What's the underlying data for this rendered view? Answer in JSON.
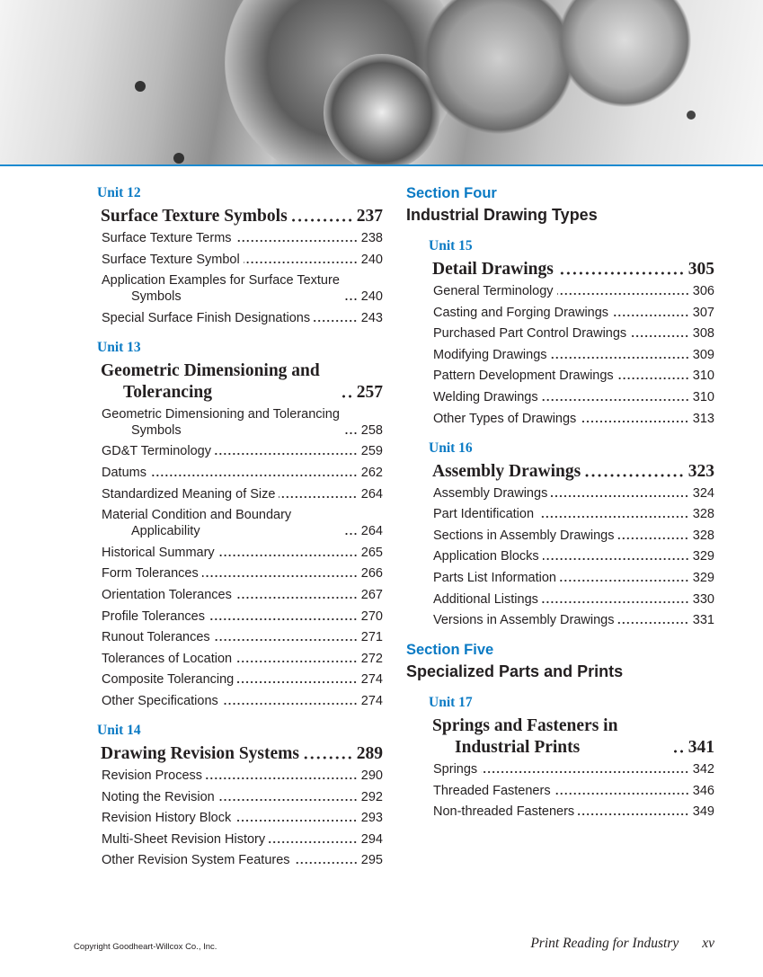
{
  "columns": {
    "left": [
      {
        "type": "unit",
        "label": "Unit 12",
        "title": "Surface Texture Symbols",
        "page": "237",
        "entries": [
          {
            "label": "Surface Texture Terms",
            "page": "238"
          },
          {
            "label": "Surface Texture Symbol",
            "page": "240"
          },
          {
            "label": "Application Examples for Surface Texture Symbols",
            "page": "240"
          },
          {
            "label": "Special Surface Finish Designations",
            "page": "243"
          }
        ]
      },
      {
        "type": "unit",
        "label": "Unit 13",
        "title": "Geometric Dimensioning and Tolerancing",
        "page": "257",
        "entries": [
          {
            "label": "Geometric Dimensioning and Tolerancing Symbols",
            "page": "258"
          },
          {
            "label": "GD&T Terminology",
            "page": "259"
          },
          {
            "label": "Datums",
            "page": "262"
          },
          {
            "label": "Standardized Meaning of Size",
            "page": "264"
          },
          {
            "label": "Material Condition and Boundary Applicability",
            "page": "264"
          },
          {
            "label": "Historical Summary",
            "page": "265"
          },
          {
            "label": "Form Tolerances",
            "page": "266"
          },
          {
            "label": "Orientation Tolerances",
            "page": "267"
          },
          {
            "label": "Profile Tolerances",
            "page": "270"
          },
          {
            "label": "Runout Tolerances",
            "page": "271"
          },
          {
            "label": "Tolerances of Location",
            "page": "272"
          },
          {
            "label": "Composite Tolerancing",
            "page": "274"
          },
          {
            "label": "Other Specifications",
            "page": "274"
          }
        ]
      },
      {
        "type": "unit",
        "label": "Unit 14",
        "title": "Drawing Revision Systems",
        "page": "289",
        "entries": [
          {
            "label": "Revision Process",
            "page": "290"
          },
          {
            "label": "Noting the Revision",
            "page": "292"
          },
          {
            "label": "Revision History Block",
            "page": "293"
          },
          {
            "label": "Multi-Sheet Revision History",
            "page": "294"
          },
          {
            "label": "Other Revision System Features",
            "page": "295"
          }
        ]
      }
    ],
    "right": [
      {
        "type": "section",
        "label": "Section Four",
        "title": "Industrial Drawing Types"
      },
      {
        "type": "unit",
        "label": "Unit 15",
        "title": "Detail Drawings",
        "page": "305",
        "entries": [
          {
            "label": "General Terminology",
            "page": "306"
          },
          {
            "label": "Casting and Forging Drawings",
            "page": "307"
          },
          {
            "label": "Purchased Part Control Drawings",
            "page": "308"
          },
          {
            "label": "Modifying Drawings",
            "page": "309"
          },
          {
            "label": "Pattern Development Drawings",
            "page": "310"
          },
          {
            "label": "Welding Drawings",
            "page": "310"
          },
          {
            "label": "Other Types of Drawings",
            "page": "313"
          }
        ]
      },
      {
        "type": "unit",
        "label": "Unit 16",
        "title": "Assembly Drawings",
        "page": "323",
        "entries": [
          {
            "label": "Assembly Drawings",
            "page": "324"
          },
          {
            "label": "Part Identification",
            "page": "328"
          },
          {
            "label": "Sections in Assembly Drawings",
            "page": "328"
          },
          {
            "label": "Application Blocks",
            "page": "329"
          },
          {
            "label": "Parts List Information",
            "page": "329"
          },
          {
            "label": "Additional Listings",
            "page": "330"
          },
          {
            "label": "Versions in Assembly Drawings",
            "page": "331"
          }
        ]
      },
      {
        "type": "section",
        "label": "Section Five",
        "title": "Specialized Parts and Prints"
      },
      {
        "type": "unit",
        "label": "Unit 17",
        "title": "Springs and Fasteners in Industrial Prints",
        "page": "341",
        "entries": [
          {
            "label": "Springs",
            "page": "342"
          },
          {
            "label": "Threaded Fasteners",
            "page": "346"
          },
          {
            "label": "Non-threaded Fasteners",
            "page": "349"
          }
        ]
      }
    ]
  },
  "footer": {
    "copyright": "Copyright Goodheart-Willcox Co., Inc.",
    "book_title": "Print Reading for Industry",
    "page_number": "xv"
  },
  "colors": {
    "accent": "#0a7ac4",
    "rule": "#1c8ad0"
  },
  "header_image": "gearbox-illustration"
}
